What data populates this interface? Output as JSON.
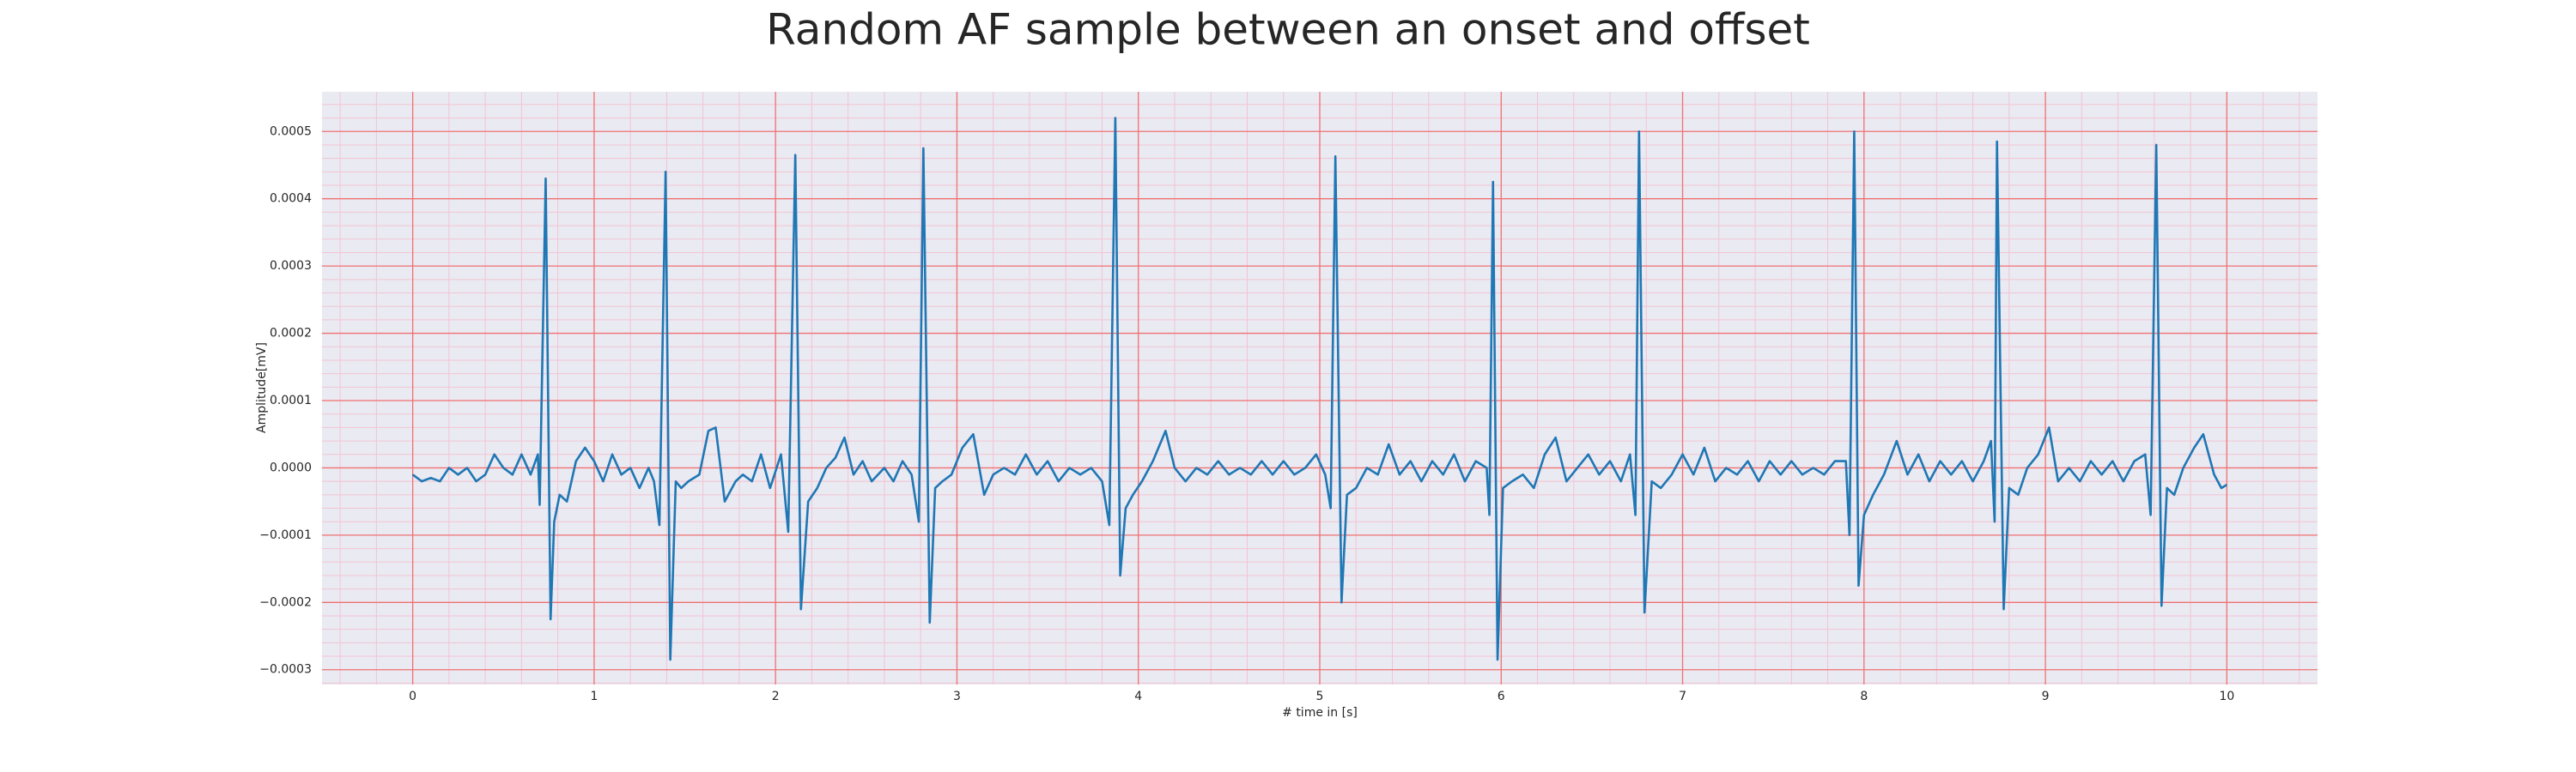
{
  "chart_data": {
    "type": "line",
    "title": "Random AF sample between an onset and offset",
    "xlabel": "# time in [s]",
    "ylabel": "Amplitude[mV]",
    "color": "#1f77b4",
    "background": "#eaeaf2",
    "grid": true,
    "grid_color": "#f07070",
    "minor_grid": true,
    "minor_grid_color": "#f2c4d2",
    "xlim": [
      -0.5,
      10.5
    ],
    "ylim": [
      -0.000322,
      0.000559
    ],
    "xticks": [
      0,
      1,
      2,
      3,
      4,
      5,
      6,
      7,
      8,
      9,
      10
    ],
    "yticks": [
      {
        "value": -0.0003,
        "label": "−0.0003"
      },
      {
        "value": -0.0002,
        "label": "−0.0002"
      },
      {
        "value": -0.0001,
        "label": "−0.0001"
      },
      {
        "value": 0,
        "label": "0.0000"
      },
      {
        "value": 0.0001,
        "label": "0.0001"
      },
      {
        "value": 0.0002,
        "label": "0.0002"
      },
      {
        "value": 0.0003,
        "label": "0.0003"
      },
      {
        "value": 0.0004,
        "label": "0.0004"
      },
      {
        "value": 0.0005,
        "label": "0.0005"
      }
    ],
    "xminorticks": [
      -0.4,
      -0.2,
      0.2,
      0.4,
      0.6,
      0.8,
      1.2,
      1.4,
      1.6,
      1.8,
      2.2,
      2.4,
      2.6,
      2.8,
      3.2,
      3.4,
      3.6,
      3.8,
      4.2,
      4.4,
      4.6,
      4.8,
      5.2,
      5.4,
      5.6,
      5.8,
      6.2,
      6.4,
      6.6,
      6.8,
      7.2,
      7.4,
      7.6,
      7.8,
      8.2,
      8.4,
      8.6,
      8.8,
      9.2,
      9.4,
      9.6,
      9.8,
      10.2,
      10.4
    ],
    "yminorticks": [
      -0.00032,
      -0.00028,
      -0.00026,
      -0.00024,
      -0.00022,
      -0.00018,
      -0.00016,
      -0.00014,
      -0.00012,
      -8e-05,
      -6e-05,
      -4e-05,
      -2e-05,
      2e-05,
      4e-05,
      6e-05,
      8e-05,
      0.00012,
      0.00014,
      0.00016,
      0.00018,
      0.00022,
      0.00024,
      0.00026,
      0.00028,
      0.00032,
      0.00034,
      0.00036,
      0.00038,
      0.00042,
      0.00044,
      0.00046,
      0.00048,
      0.00052,
      0.00054
    ],
    "x": [
      0,
      0.05,
      0.1,
      0.15,
      0.2,
      0.25,
      0.3,
      0.35,
      0.4,
      0.45,
      0.5,
      0.55,
      0.6,
      0.65,
      0.69,
      0.7,
      0.733,
      0.76,
      0.78,
      0.81,
      0.85,
      0.9,
      0.95,
      1.0,
      1.05,
      1.1,
      1.15,
      1.2,
      1.25,
      1.3,
      1.33,
      1.36,
      1.394,
      1.42,
      1.45,
      1.48,
      1.52,
      1.58,
      1.63,
      1.67,
      1.72,
      1.78,
      1.82,
      1.87,
      1.92,
      1.97,
      2.03,
      2.07,
      2.109,
      2.14,
      2.18,
      2.23,
      2.28,
      2.33,
      2.38,
      2.43,
      2.48,
      2.53,
      2.6,
      2.65,
      2.7,
      2.75,
      2.79,
      2.815,
      2.85,
      2.88,
      2.92,
      2.97,
      3.03,
      3.09,
      3.15,
      3.2,
      3.26,
      3.32,
      3.38,
      3.44,
      3.5,
      3.56,
      3.62,
      3.68,
      3.74,
      3.8,
      3.84,
      3.873,
      3.9,
      3.93,
      3.97,
      4.02,
      4.08,
      4.15,
      4.2,
      4.26,
      4.32,
      4.38,
      4.44,
      4.5,
      4.56,
      4.62,
      4.68,
      4.74,
      4.8,
      4.86,
      4.92,
      4.98,
      5.03,
      5.06,
      5.086,
      5.12,
      5.15,
      5.2,
      5.26,
      5.32,
      5.38,
      5.44,
      5.5,
      5.56,
      5.62,
      5.68,
      5.74,
      5.8,
      5.86,
      5.92,
      5.935,
      5.955,
      5.98,
      6.01,
      6.06,
      6.12,
      6.18,
      6.24,
      6.3,
      6.36,
      6.42,
      6.48,
      6.54,
      6.6,
      6.66,
      6.71,
      6.74,
      6.76,
      6.79,
      6.83,
      6.88,
      6.94,
      7.0,
      7.06,
      7.12,
      7.18,
      7.24,
      7.3,
      7.36,
      7.42,
      7.48,
      7.54,
      7.6,
      7.66,
      7.72,
      7.78,
      7.84,
      7.9,
      7.92,
      7.946,
      7.97,
      8.0,
      8.05,
      8.11,
      8.18,
      8.24,
      8.3,
      8.36,
      8.42,
      8.48,
      8.54,
      8.6,
      8.66,
      8.7,
      8.72,
      8.733,
      8.77,
      8.8,
      8.85,
      8.9,
      8.96,
      9.02,
      9.07,
      9.13,
      9.19,
      9.25,
      9.31,
      9.37,
      9.43,
      9.49,
      9.55,
      9.58,
      9.611,
      9.64,
      9.67,
      9.71,
      9.76,
      9.82,
      9.87,
      9.93,
      9.97,
      10.0
    ],
    "values": [
      -1e-05,
      -2e-05,
      -1.5e-05,
      -2e-05,
      0,
      -1e-05,
      0,
      -2e-05,
      -1e-05,
      2e-05,
      0,
      -1e-05,
      2e-05,
      -1e-05,
      2e-05,
      -5.5e-05,
      0.00043,
      -0.000225,
      -8e-05,
      -4e-05,
      -5e-05,
      1e-05,
      3e-05,
      1e-05,
      -2e-05,
      2e-05,
      -1e-05,
      0,
      -3e-05,
      0,
      -2e-05,
      -8.5e-05,
      0.00044,
      -0.000285,
      -2e-05,
      -3e-05,
      -2e-05,
      -1e-05,
      5.5e-05,
      6e-05,
      -5e-05,
      -2e-05,
      -1e-05,
      -2e-05,
      2e-05,
      -3e-05,
      2e-05,
      -9.5e-05,
      0.000465,
      -0.00021,
      -5e-05,
      -3e-05,
      0,
      1.5e-05,
      4.5e-05,
      -1e-05,
      1e-05,
      -2e-05,
      0,
      -2e-05,
      1e-05,
      -1e-05,
      -8e-05,
      0.000475,
      -0.00023,
      -3e-05,
      -2e-05,
      -1e-05,
      3e-05,
      5e-05,
      -4e-05,
      -1e-05,
      0,
      -1e-05,
      2e-05,
      -1e-05,
      1e-05,
      -2e-05,
      0,
      -1e-05,
      0,
      -2e-05,
      -8.5e-05,
      0.00052,
      -0.00016,
      -6e-05,
      -4e-05,
      -2e-05,
      1e-05,
      5.5e-05,
      0,
      -2e-05,
      0,
      -1e-05,
      1e-05,
      -1e-05,
      0,
      -1e-05,
      1e-05,
      -1e-05,
      1e-05,
      -1e-05,
      0,
      2e-05,
      -1e-05,
      -6e-05,
      0.000463,
      -0.0002,
      -4e-05,
      -3e-05,
      0,
      -1e-05,
      3.5e-05,
      -1e-05,
      1e-05,
      -2e-05,
      1e-05,
      -1e-05,
      2e-05,
      -2e-05,
      1e-05,
      0,
      -7e-05,
      0.000425,
      -0.000285,
      -3e-05,
      -2e-05,
      -1e-05,
      -3e-05,
      2e-05,
      4.5e-05,
      -2e-05,
      0,
      2e-05,
      -1e-05,
      1e-05,
      -2e-05,
      2e-05,
      -7e-05,
      0.0005,
      -0.000215,
      -2e-05,
      -3e-05,
      -1e-05,
      2e-05,
      -1e-05,
      3e-05,
      -2e-05,
      0,
      -1e-05,
      1e-05,
      -2e-05,
      1e-05,
      -1e-05,
      1e-05,
      -1e-05,
      0,
      -1e-05,
      1e-05,
      1e-05,
      -0.0001,
      0.0005,
      -0.000175,
      -7e-05,
      -4e-05,
      -1e-05,
      4e-05,
      -1e-05,
      2e-05,
      -2e-05,
      1e-05,
      -1e-05,
      1e-05,
      -2e-05,
      1e-05,
      4e-05,
      -8e-05,
      0.000485,
      -0.00021,
      -3e-05,
      -4e-05,
      0,
      2e-05,
      6e-05,
      -2e-05,
      0,
      -2e-05,
      1e-05,
      -1e-05,
      1e-05,
      -2e-05,
      1e-05,
      2e-05,
      -7e-05,
      0.00048,
      -0.000205,
      -3e-05,
      -4e-05,
      0,
      3e-05,
      5e-05,
      -1e-05,
      -3e-05,
      -2.5e-05
    ]
  }
}
